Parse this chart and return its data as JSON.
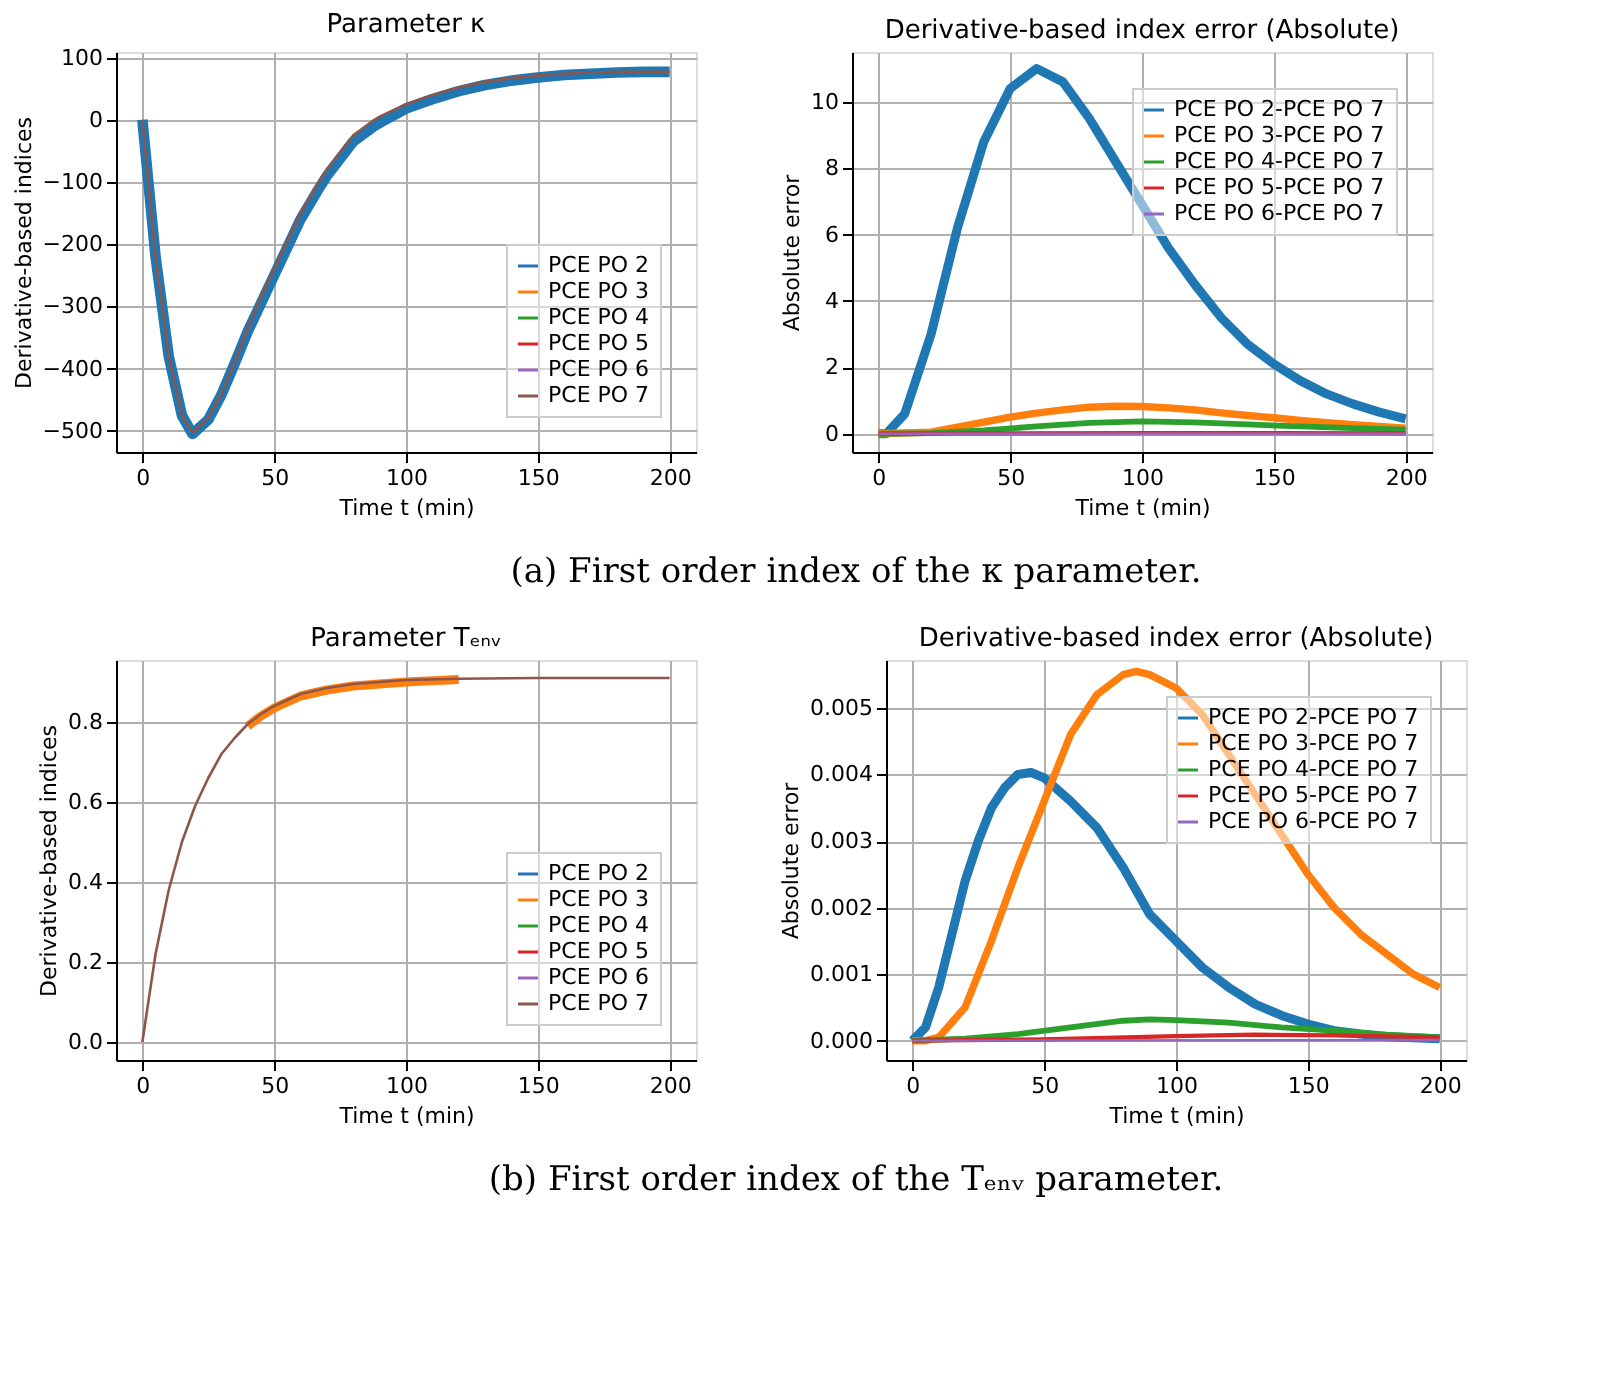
{
  "chart_data": [
    {
      "type": "line",
      "title": "Parameter κ",
      "xlabel": "Time t (min)",
      "ylabel": "Derivative-based indices",
      "xlim": [
        -10,
        210
      ],
      "xticks": [
        0,
        50,
        100,
        150,
        200
      ],
      "ylim": [
        -534,
        109
      ],
      "yticks": [
        -500,
        -400,
        -300,
        -200,
        -100,
        0,
        100
      ],
      "grid": true,
      "legend": "bottom right",
      "marker": "none",
      "line_style": "solid",
      "annotations": [
        "(a) First order index of the κ parameter."
      ],
      "series": [
        {
          "name": "PCE PO 2",
          "color": "#1f77b4",
          "x": [
            0,
            5,
            10,
            15,
            19,
            25,
            30,
            35,
            40,
            45,
            50,
            60,
            67,
            70,
            80,
            88,
            90,
            100,
            110,
            120,
            130,
            140,
            150,
            160,
            170,
            180,
            190,
            200
          ],
          "values": [
            0,
            -220,
            -380,
            -475,
            -505,
            -482,
            -442,
            -392,
            -340,
            -295,
            -250,
            -160,
            -110,
            -90,
            -35,
            -10,
            -5,
            18,
            33,
            46,
            56,
            63,
            68,
            72,
            74,
            76,
            77,
            77
          ]
        },
        {
          "name": "PCE PO 3",
          "color": "#ff7f0e"
        },
        {
          "name": "PCE PO 4",
          "color": "#2ca02c"
        },
        {
          "name": "PCE PO 5",
          "color": "#d62728"
        },
        {
          "name": "PCE PO 6",
          "color": "#9467bd"
        },
        {
          "name": "PCE PO 7",
          "color": "#8c564b",
          "x": [
            0,
            5,
            10,
            15,
            19,
            25,
            30,
            35,
            40,
            45,
            50,
            60,
            67,
            70,
            80,
            88,
            90,
            100,
            110,
            120,
            130,
            140,
            150,
            160,
            170,
            180,
            190,
            200
          ],
          "values": [
            0,
            -220,
            -380,
            -475,
            -503,
            -480,
            -440,
            -390,
            -335,
            -285,
            -240,
            -150,
            -100,
            -80,
            -25,
            0,
            5,
            25,
            40,
            52,
            61,
            67,
            71,
            74,
            76,
            77,
            77,
            77
          ]
        }
      ]
    },
    {
      "type": "line",
      "title": "Derivative-based index error (Absolute)",
      "xlabel": "Time t (min)",
      "ylabel": "Absolute error",
      "xlim": [
        -10,
        210
      ],
      "xticks": [
        0,
        50,
        100,
        150,
        200
      ],
      "ylim": [
        -0.55,
        11.5
      ],
      "yticks": [
        0,
        2,
        4,
        6,
        8,
        10
      ],
      "grid": true,
      "legend": "top right",
      "marker": "none",
      "line_style": "solid",
      "series": [
        {
          "name": "PCE PO 2-PCE PO 7",
          "color": "#1f77b4",
          "x": [
            0,
            3,
            10,
            20,
            30,
            40,
            50,
            60,
            70,
            80,
            90,
            100,
            110,
            120,
            130,
            140,
            150,
            160,
            170,
            180,
            190,
            200
          ],
          "values": [
            0,
            0,
            0.6,
            3,
            6.2,
            8.8,
            10.4,
            11,
            10.6,
            9.5,
            8.2,
            6.9,
            5.6,
            4.5,
            3.5,
            2.7,
            2.1,
            1.6,
            1.2,
            0.9,
            0.65,
            0.45
          ]
        },
        {
          "name": "PCE PO 3-PCE PO 7",
          "color": "#ff7f0e",
          "x": [
            0,
            20,
            30,
            40,
            50,
            60,
            70,
            80,
            90,
            100,
            110,
            120,
            130,
            140,
            150,
            160,
            170,
            180,
            190,
            200
          ],
          "values": [
            0,
            0.05,
            0.2,
            0.35,
            0.5,
            0.62,
            0.72,
            0.8,
            0.83,
            0.82,
            0.78,
            0.72,
            0.63,
            0.55,
            0.48,
            0.4,
            0.33,
            0.27,
            0.22,
            0.17
          ]
        },
        {
          "name": "PCE PO 4-PCE PO 7",
          "color": "#2ca02c",
          "x": [
            0,
            20,
            40,
            60,
            80,
            100,
            120,
            140,
            160,
            180,
            200
          ],
          "values": [
            0,
            0.02,
            0.1,
            0.22,
            0.33,
            0.37,
            0.34,
            0.28,
            0.22,
            0.17,
            0.12
          ]
        },
        {
          "name": "PCE PO 5-PCE PO 7",
          "color": "#d62728",
          "x": [
            0,
            50,
            100,
            150,
            200
          ],
          "values": [
            0,
            0.01,
            0.02,
            0.02,
            0.01
          ]
        },
        {
          "name": "PCE PO 6-PCE PO 7",
          "color": "#9467bd",
          "x": [
            0,
            100,
            200
          ],
          "values": [
            0,
            0,
            0
          ]
        }
      ]
    },
    {
      "type": "line",
      "title": "Parameter Tₑₙᵥ",
      "xlabel": "Time t (min)",
      "ylabel": "Derivative-based indices",
      "xlim": [
        -10,
        210
      ],
      "xticks": [
        0,
        50,
        100,
        150,
        200
      ],
      "ylim": [
        -0.045,
        0.955
      ],
      "yticks": [
        {
          "value": 0,
          "label": "0.0"
        },
        0.2,
        0.4,
        0.6,
        0.8
      ],
      "grid": true,
      "legend": "bottom right",
      "marker": "none",
      "line_style": "solid",
      "annotations": [
        "(b) First order index of the Tₑₙᵥ parameter."
      ],
      "series": [
        {
          "name": "PCE PO 2",
          "color": "#1f77b4"
        },
        {
          "name": "PCE PO 3",
          "color": "#ff7f0e",
          "x": [
            40,
            45,
            50,
            60,
            70,
            80,
            90,
            100,
            120
          ],
          "values": [
            0.79,
            0.815,
            0.835,
            0.865,
            0.88,
            0.89,
            0.895,
            0.9,
            0.906
          ]
        },
        {
          "name": "PCE PO 4",
          "color": "#2ca02c"
        },
        {
          "name": "PCE PO 5",
          "color": "#d62728"
        },
        {
          "name": "PCE PO 6",
          "color": "#9467bd"
        },
        {
          "name": "PCE PO 7",
          "color": "#8c564b",
          "x": [
            0,
            5,
            10,
            15,
            20,
            25,
            30,
            35,
            40,
            45,
            50,
            60,
            70,
            80,
            90,
            100,
            120,
            150,
            200
          ],
          "values": [
            0,
            0.22,
            0.38,
            0.5,
            0.59,
            0.66,
            0.72,
            0.76,
            0.795,
            0.82,
            0.84,
            0.87,
            0.885,
            0.895,
            0.9,
            0.905,
            0.908,
            0.91,
            0.91
          ]
        }
      ]
    },
    {
      "type": "line",
      "title": "Derivative-based index error (Absolute)",
      "xlabel": "Time t (min)",
      "ylabel": "Absolute error",
      "xlim": [
        -10,
        210
      ],
      "xticks": [
        0,
        50,
        100,
        150,
        200
      ],
      "ylim": [
        -0.00029,
        0.00572
      ],
      "yticks": [
        {
          "value": 0,
          "label": "0.000"
        },
        0.001,
        0.002,
        0.003,
        0.004,
        0.005
      ],
      "grid": true,
      "legend": "top right",
      "marker": "none",
      "line_style": "solid",
      "series": [
        {
          "name": "PCE PO 2-PCE PO 7",
          "color": "#1f77b4",
          "x": [
            0,
            5,
            10,
            15,
            20,
            25,
            30,
            35,
            40,
            45,
            50,
            60,
            70,
            80,
            90,
            100,
            110,
            120,
            130,
            140,
            150,
            160,
            170,
            180,
            200
          ],
          "values": [
            0,
            0.0002,
            0.0008,
            0.0016,
            0.0024,
            0.003,
            0.0035,
            0.0038,
            0.004,
            0.00403,
            0.00395,
            0.0036,
            0.0032,
            0.0026,
            0.0019,
            0.0015,
            0.0011,
            0.0008,
            0.00055,
            0.00038,
            0.00025,
            0.00015,
            0.0001,
            6e-05,
            3e-05
          ]
        },
        {
          "name": "PCE PO 3-PCE PO 7",
          "color": "#ff7f0e",
          "x": [
            0,
            5,
            10,
            20,
            30,
            40,
            50,
            60,
            70,
            80,
            85,
            90,
            100,
            110,
            120,
            130,
            140,
            150,
            160,
            170,
            180,
            190,
            200
          ],
          "values": [
            0,
            0,
            5e-05,
            0.0005,
            0.0015,
            0.0026,
            0.0036,
            0.0046,
            0.0052,
            0.0055,
            0.00555,
            0.0055,
            0.0053,
            0.0049,
            0.0043,
            0.0037,
            0.0031,
            0.0025,
            0.002,
            0.0016,
            0.0013,
            0.001,
            0.0008
          ]
        },
        {
          "name": "PCE PO 4-PCE PO 7",
          "color": "#2ca02c",
          "x": [
            0,
            20,
            40,
            60,
            80,
            90,
            100,
            120,
            140,
            160,
            180,
            200
          ],
          "values": [
            0,
            3e-05,
            0.0001,
            0.0002,
            0.0003,
            0.00032,
            0.00031,
            0.00027,
            0.0002,
            0.00015,
            9e-05,
            5e-05
          ]
        },
        {
          "name": "PCE PO 5-PCE PO 7",
          "color": "#d62728",
          "x": [
            0,
            50,
            100,
            130,
            160,
            200
          ],
          "values": [
            0,
            2e-05,
            7e-05,
            9e-05,
            8e-05,
            5e-05
          ]
        },
        {
          "name": "PCE PO 6-PCE PO 7",
          "color": "#9467bd",
          "x": [
            0,
            200
          ],
          "values": [
            0,
            1e-05
          ]
        }
      ]
    }
  ]
}
